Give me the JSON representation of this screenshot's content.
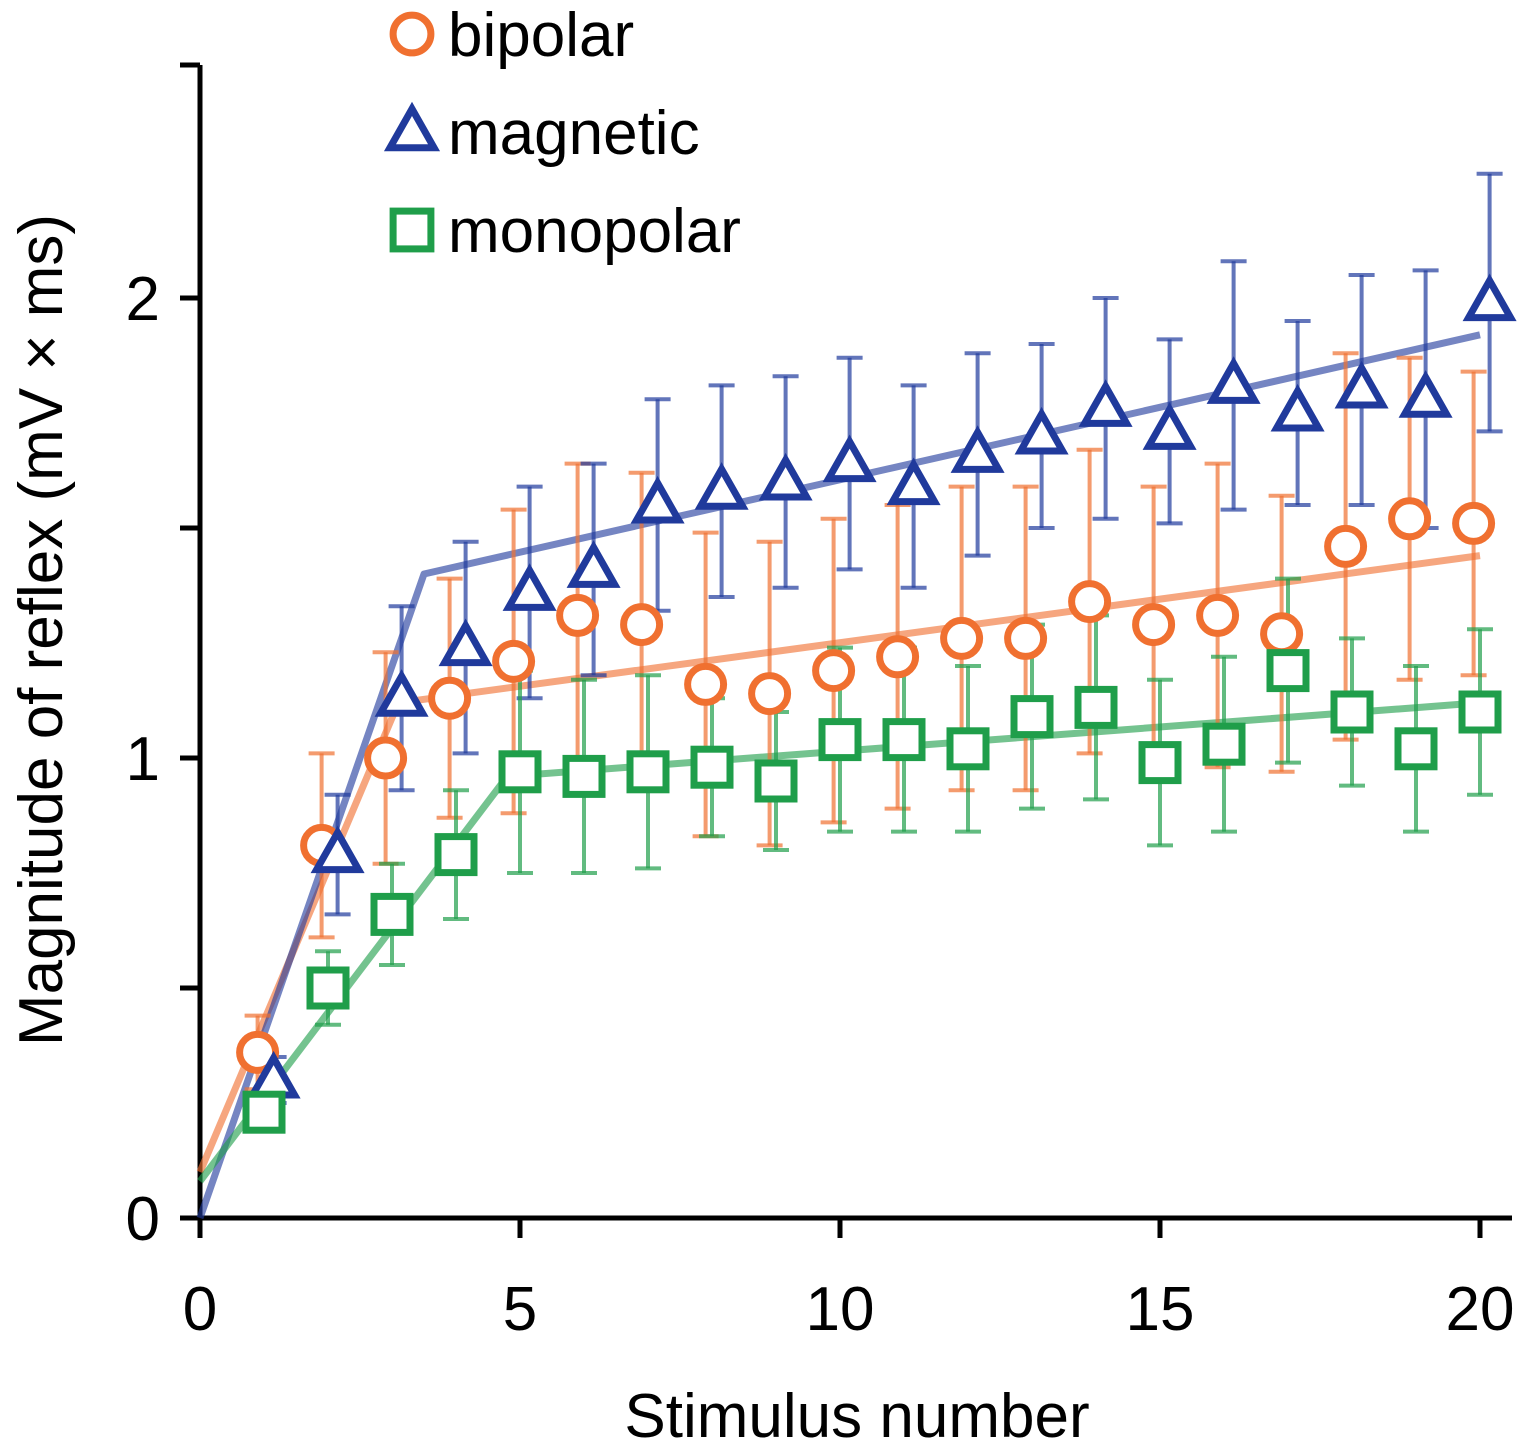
{
  "chart_data": {
    "type": "scatter",
    "title": "",
    "xlabel": "Stimulus number",
    "ylabel": "Magnitude of reflex (mV × ms)",
    "xlim": [
      0,
      20.5
    ],
    "ylim": [
      0,
      2.5
    ],
    "x_ticks": [
      0,
      5,
      10,
      15,
      20
    ],
    "x_tick_labels": [
      "0",
      "5",
      "10",
      "15",
      "20"
    ],
    "y_ticks": [
      0,
      0.5,
      1,
      1.5,
      2
    ],
    "y_tick_labels": [
      "0",
      "",
      "1",
      "",
      "2"
    ],
    "grid": false,
    "legend_position": "top-left",
    "series": [
      {
        "name": "bipolar",
        "marker": "circle",
        "color": "#f07030",
        "x_offset": -0.1,
        "x": [
          1,
          2,
          3,
          4,
          5,
          6,
          7,
          8,
          9,
          10,
          11,
          12,
          13,
          14,
          15,
          16,
          17,
          18,
          19,
          20
        ],
        "values": [
          0.36,
          0.81,
          1.0,
          1.13,
          1.21,
          1.31,
          1.29,
          1.16,
          1.14,
          1.19,
          1.22,
          1.26,
          1.26,
          1.34,
          1.29,
          1.31,
          1.27,
          1.46,
          1.52,
          1.51
        ],
        "error": [
          0.08,
          0.2,
          0.23,
          0.26,
          0.33,
          0.33,
          0.33,
          0.33,
          0.33,
          0.33,
          0.33,
          0.33,
          0.33,
          0.33,
          0.3,
          0.33,
          0.3,
          0.42,
          0.35,
          0.33
        ],
        "fit": [
          [
            0,
            0.1
          ],
          [
            3.1,
            1.12
          ],
          [
            20,
            1.44
          ]
        ]
      },
      {
        "name": "magnetic",
        "marker": "triangle",
        "color": "#203a9c",
        "x_offset": 0.15,
        "x": [
          1,
          2,
          3,
          4,
          5,
          6,
          7,
          8,
          9,
          10,
          11,
          12,
          13,
          14,
          15,
          16,
          17,
          18,
          19,
          20
        ],
        "values": [
          0.3,
          0.79,
          1.13,
          1.24,
          1.36,
          1.41,
          1.55,
          1.58,
          1.6,
          1.64,
          1.59,
          1.66,
          1.7,
          1.76,
          1.71,
          1.81,
          1.75,
          1.8,
          1.78,
          1.99
        ],
        "error": [
          0.05,
          0.13,
          0.2,
          0.23,
          0.23,
          0.23,
          0.23,
          0.23,
          0.23,
          0.23,
          0.22,
          0.22,
          0.2,
          0.24,
          0.2,
          0.27,
          0.2,
          0.25,
          0.28,
          0.28
        ],
        "fit": [
          [
            0,
            0
          ],
          [
            3.5,
            1.4
          ],
          [
            20,
            1.92
          ]
        ]
      },
      {
        "name": "monopolar",
        "marker": "square",
        "color": "#1f9e4a",
        "x_offset": 0,
        "x": [
          1,
          2,
          3,
          4,
          5,
          6,
          7,
          8,
          9,
          10,
          11,
          12,
          13,
          14,
          15,
          16,
          17,
          18,
          19,
          20
        ],
        "values": [
          0.23,
          0.5,
          0.66,
          0.79,
          0.97,
          0.96,
          0.97,
          0.98,
          0.95,
          1.04,
          1.04,
          1.02,
          1.09,
          1.11,
          0.99,
          1.03,
          1.19,
          1.1,
          1.02,
          1.1
        ],
        "error": [
          0.04,
          0.08,
          0.11,
          0.14,
          0.22,
          0.21,
          0.21,
          0.15,
          0.15,
          0.2,
          0.2,
          0.18,
          0.2,
          0.2,
          0.18,
          0.19,
          0.2,
          0.16,
          0.18,
          0.18
        ],
        "fit": [
          [
            0,
            0.08
          ],
          [
            4.8,
            0.96
          ],
          [
            20,
            1.12
          ]
        ]
      }
    ]
  }
}
